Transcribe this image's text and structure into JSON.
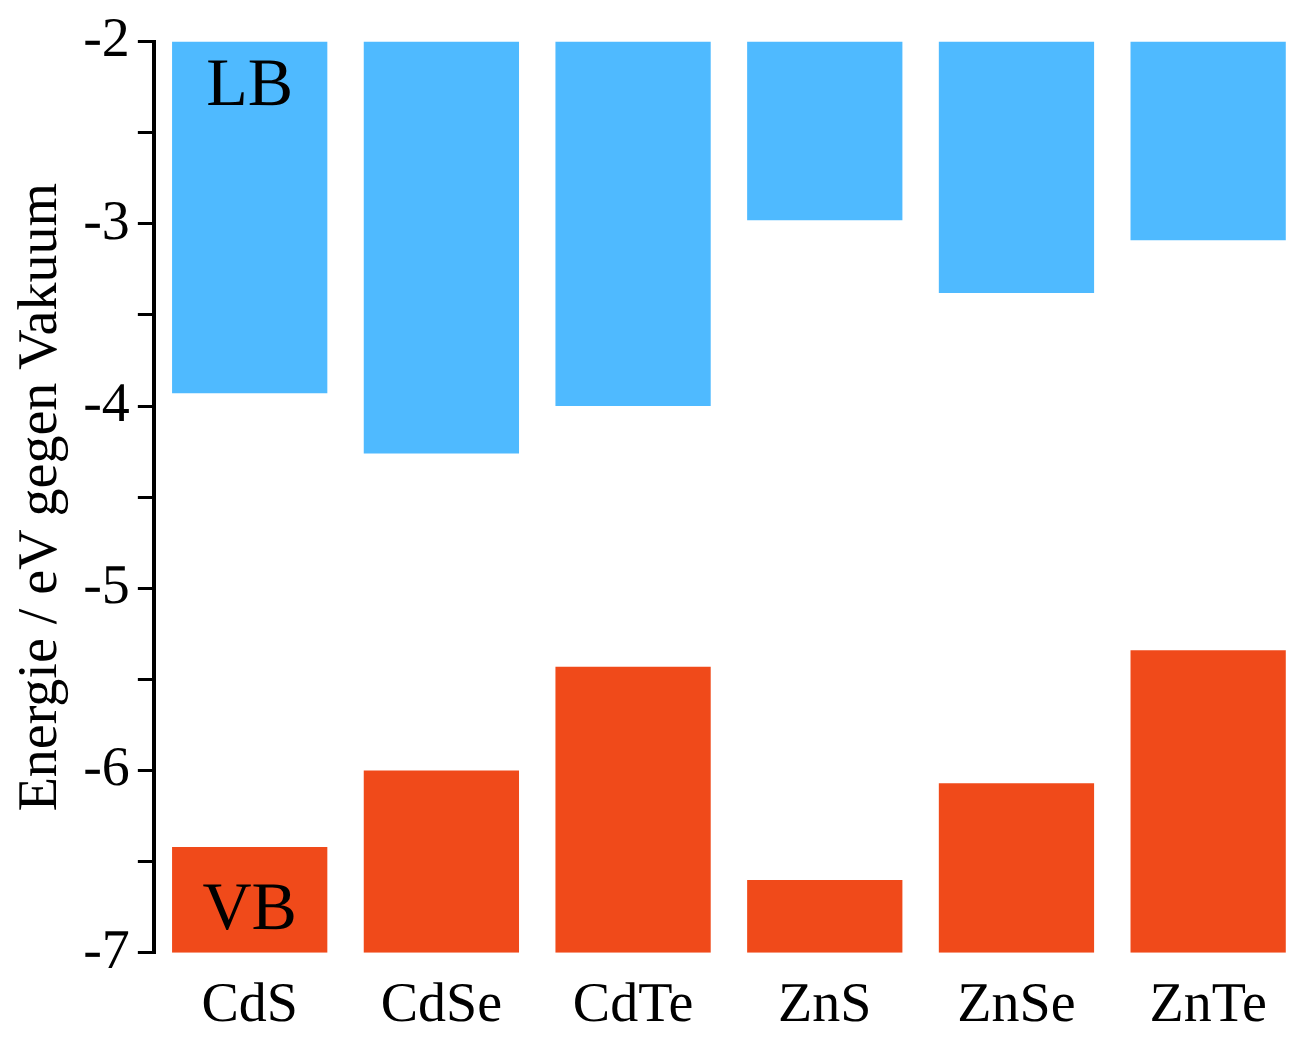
{
  "chart_data": {
    "type": "bar",
    "ylabel": "Energie / eV gegen Vakuum",
    "categories": [
      "CdS",
      "CdSe",
      "CdTe",
      "ZnS",
      "ZnSe",
      "ZnTe"
    ],
    "series": [
      {
        "name": "LB",
        "color": "#4fbaff",
        "base": [
          -2,
          -2,
          -2,
          -2,
          -2,
          -2
        ],
        "values": [
          -1.93,
          -2.26,
          -2.0,
          -0.98,
          -1.38,
          -1.09
        ]
      },
      {
        "name": "VB",
        "color": "#f04a1a",
        "base": [
          -7,
          -7,
          -7,
          -7,
          -7,
          -7
        ],
        "values": [
          0.58,
          1.0,
          1.57,
          0.4,
          0.93,
          1.66
        ]
      }
    ],
    "ylim": [
      -7,
      -2
    ],
    "yticks": [
      -7,
      {
        "value": -6.5,
        "label": null
      },
      -6,
      {
        "value": -5.5,
        "label": null
      },
      -5,
      {
        "value": -4.5,
        "label": null
      },
      -4,
      {
        "value": -3.5,
        "label": null
      },
      -3,
      {
        "value": -2.5,
        "label": null
      },
      -2
    ],
    "grid": false,
    "legend": false
  }
}
